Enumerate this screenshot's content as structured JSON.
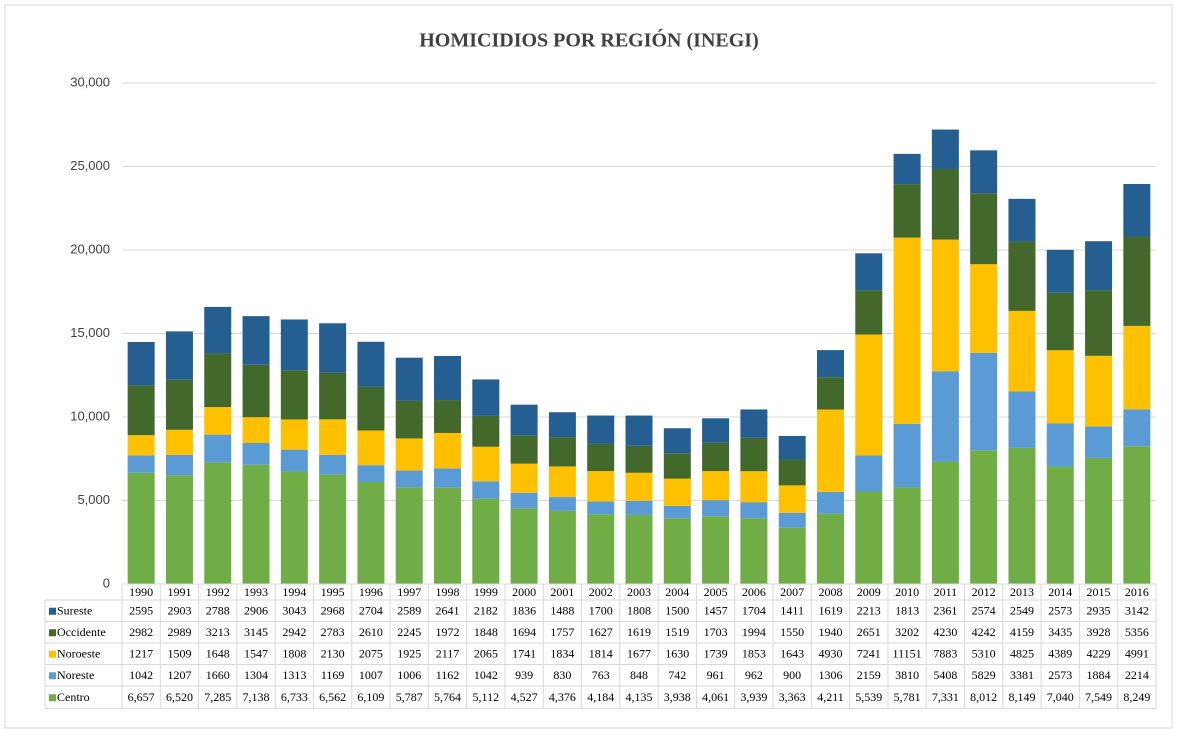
{
  "chart_data": {
    "type": "stacked-bar",
    "title": "HOMICIDIOS POR REGIÓN (INEGI)",
    "categories": [
      "1990",
      "1991",
      "1992",
      "1993",
      "1994",
      "1995",
      "1996",
      "1997",
      "1998",
      "1999",
      "2000",
      "2001",
      "2002",
      "2003",
      "2004",
      "2005",
      "2006",
      "2007",
      "2008",
      "2009",
      "2010",
      "2011",
      "2012",
      "2013",
      "2014",
      "2015",
      "2016"
    ],
    "series": [
      {
        "name": "Centro",
        "color": "#70ad47",
        "values": [
          6657,
          6520,
          7285,
          7138,
          6733,
          6562,
          6109,
          5787,
          5764,
          5112,
          4527,
          4376,
          4184,
          4135,
          3938,
          4061,
          3939,
          3363,
          4211,
          5539,
          5781,
          7331,
          8012,
          8149,
          7040,
          7549,
          8249
        ],
        "value_labels": [
          "6,657",
          "6,520",
          "7,285",
          "7,138",
          "6,733",
          "6,562",
          "6,109",
          "5,787",
          "5,764",
          "5,112",
          "4,527",
          "4,376",
          "4,184",
          "4,135",
          "3,938",
          "4,061",
          "3,939",
          "3,363",
          "4,211",
          "5,539",
          "5,781",
          "7,331",
          "8,012",
          "8,149",
          "7,040",
          "7,549",
          "8,249"
        ]
      },
      {
        "name": "Noreste",
        "color": "#5b9bd5",
        "values": [
          1042,
          1207,
          1660,
          1304,
          1313,
          1169,
          1007,
          1006,
          1162,
          1042,
          939,
          830,
          763,
          848,
          742,
          961,
          962,
          900,
          1306,
          2159,
          3810,
          5408,
          5829,
          3381,
          2573,
          1884,
          2214
        ]
      },
      {
        "name": "Noroeste",
        "color": "#ffc000",
        "values": [
          1217,
          1509,
          1648,
          1547,
          1808,
          2130,
          2075,
          1925,
          2117,
          2065,
          1741,
          1834,
          1814,
          1677,
          1630,
          1739,
          1853,
          1643,
          4930,
          7241,
          11151,
          7883,
          5310,
          4825,
          4389,
          4229,
          4991
        ]
      },
      {
        "name": "Occidente",
        "color": "#43682b",
        "values": [
          2982,
          2989,
          3213,
          3145,
          2942,
          2783,
          2610,
          2245,
          1972,
          1848,
          1694,
          1757,
          1627,
          1619,
          1519,
          1703,
          1994,
          1550,
          1940,
          2651,
          3202,
          4230,
          4242,
          4159,
          3435,
          3928,
          5356
        ]
      },
      {
        "name": "Sureste",
        "color": "#255e91",
        "values": [
          2595,
          2903,
          2788,
          2906,
          3043,
          2968,
          2704,
          2589,
          2641,
          2182,
          1836,
          1488,
          1700,
          1808,
          1500,
          1457,
          1704,
          1411,
          1619,
          2213,
          1813,
          2361,
          2574,
          2549,
          2573,
          2935,
          3142
        ]
      }
    ],
    "ylim": [
      0,
      30000
    ],
    "yticks": [
      0,
      {
        "value": 5000,
        "label": "5,000"
      },
      {
        "value": 10000,
        "label": "10,000"
      },
      {
        "value": 15000,
        "label": "15,000"
      },
      {
        "value": 20000,
        "label": "20,000"
      },
      {
        "value": 25000,
        "label": "25,000"
      },
      {
        "value": 30000,
        "label": "30,000"
      }
    ],
    "grid": true
  }
}
